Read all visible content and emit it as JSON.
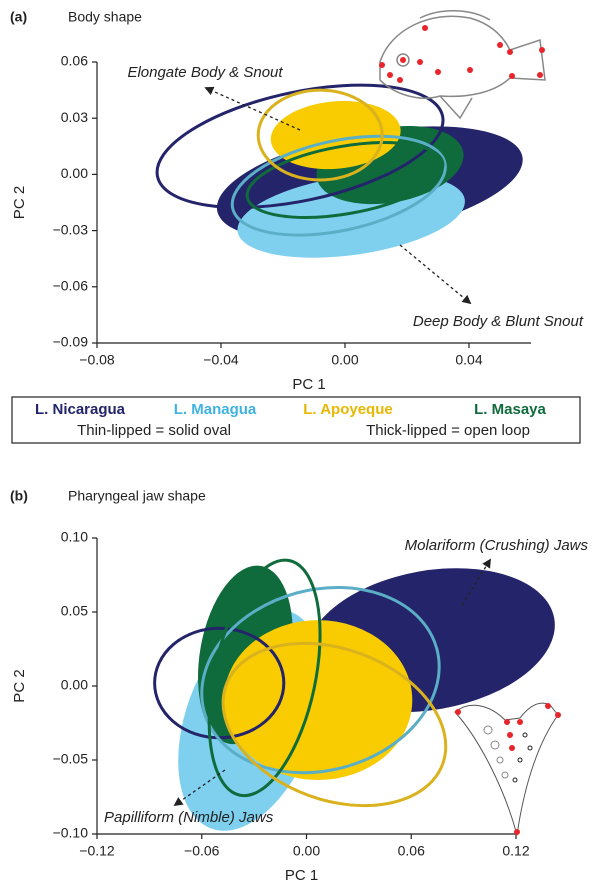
{
  "legend": {
    "entries": [
      {
        "name": "L. Nicaragua",
        "color": "#24246a"
      },
      {
        "name": "L. Managua",
        "color": "#3fb3e0"
      },
      {
        "name": "L. Apoyeque",
        "color": "#e8b800"
      },
      {
        "name": "L. Masaya",
        "color": "#0f6b3c"
      }
    ],
    "notes": [
      "Thin-lipped = solid oval",
      "Thick-lipped = open loop"
    ]
  },
  "chart_data": [
    {
      "type": "ellipse",
      "panel": "(a)",
      "title": "Body shape",
      "x_label": "PC 1",
      "y_label": "PC 2",
      "xlim": [
        -0.08,
        0.06
      ],
      "ylim": [
        -0.09,
        0.06
      ],
      "xticks": [
        {
          "value": -0.08,
          "label": "−0.08"
        },
        {
          "value": -0.04,
          "label": "−0.04"
        },
        {
          "value": 0,
          "label": "0.00"
        },
        0.04
      ],
      "yticks": [
        0.06,
        0.03,
        {
          "value": 0,
          "label": "0.00"
        },
        {
          "value": -0.03,
          "label": "−0.03"
        },
        {
          "value": -0.06,
          "label": "−0.06"
        },
        {
          "value": -0.09,
          "label": "−0.09"
        }
      ],
      "annotations": [
        "Elongate Body & Snout",
        "Deep Body & Blunt Snout"
      ],
      "ellipses": [
        {
          "style": "solid",
          "color": "#24246a",
          "cx": 0.008,
          "cy": -0.005,
          "rx": 0.05,
          "ry": 0.0275,
          "angle": -10
        },
        {
          "style": "solid",
          "color": "#7fd0ef",
          "cx": 0.002,
          "cy": -0.022,
          "rx": 0.037,
          "ry": 0.021,
          "angle": -8
        },
        {
          "style": "solid",
          "color": "#0f6b3c",
          "cx": 0.0145,
          "cy": 0.005,
          "rx": 0.024,
          "ry": 0.02,
          "angle": -10
        },
        {
          "style": "solid",
          "color": "#f8cc00",
          "cx": -0.003,
          "cy": 0.021,
          "rx": 0.021,
          "ry": 0.018,
          "angle": -5
        },
        {
          "style": "open",
          "color": "#24246a",
          "cx": -0.0145,
          "cy": 0.015,
          "rx": 0.047,
          "ry": 0.029,
          "angle": -12
        },
        {
          "style": "open",
          "color": "#5aaec6",
          "cx": -0.002,
          "cy": -0.006,
          "rx": 0.035,
          "ry": 0.024,
          "angle": -12
        },
        {
          "style": "open",
          "color": "#0f6b3c",
          "cx": 0,
          "cy": -0.003,
          "rx": 0.032,
          "ry": 0.018,
          "angle": -10
        },
        {
          "style": "open",
          "color": "#d9b21e",
          "cx": -0.008,
          "cy": 0.021,
          "rx": 0.02,
          "ry": 0.024,
          "angle": 0
        }
      ]
    },
    {
      "type": "ellipse",
      "panel": "(b)",
      "title": "Pharyngeal jaw shape",
      "x_label": "PC 1",
      "y_label": "PC 2",
      "xlim": [
        -0.12,
        0.12
      ],
      "ylim": [
        -0.1,
        0.1
      ],
      "xticks": [
        {
          "value": -0.12,
          "label": "−0.12"
        },
        {
          "value": -0.06,
          "label": "−0.06"
        },
        {
          "value": 0,
          "label": "0.00"
        },
        0.06,
        0.12
      ],
      "yticks": [
        {
          "value": 0.1,
          "label": "0.10"
        },
        0.05,
        {
          "value": 0,
          "label": "0.00"
        },
        {
          "value": -0.05,
          "label": "−0.05"
        },
        {
          "value": -0.1,
          "label": "−0.10"
        }
      ],
      "annotations": [
        "Molariform (Crushing) Jaws",
        "Papilliform (Nimble) Jaws"
      ],
      "ellipses": [
        {
          "style": "solid",
          "color": "#24246a",
          "cx": 0.071,
          "cy": 0.031,
          "rx": 0.072,
          "ry": 0.047,
          "angle": -10
        },
        {
          "style": "solid",
          "color": "#7fd0ef",
          "cx": -0.032,
          "cy": -0.023,
          "rx": 0.037,
          "ry": 0.078,
          "angle": 20
        },
        {
          "style": "solid",
          "color": "#0f6b3c",
          "cx": -0.035,
          "cy": 0.021,
          "rx": 0.026,
          "ry": 0.061,
          "angle": 10
        },
        {
          "style": "solid",
          "color": "#f8cc00",
          "cx": 0.0066,
          "cy": -0.0095,
          "rx": 0.054,
          "ry": 0.054,
          "angle": 0
        },
        {
          "style": "open",
          "color": "#24246a",
          "cx": -0.05,
          "cy": 0.002,
          "rx": 0.037,
          "ry": 0.037,
          "angle": 0
        },
        {
          "style": "open",
          "color": "#5aaec6",
          "cx": 0.008,
          "cy": 0.004,
          "rx": 0.069,
          "ry": 0.061,
          "angle": -15
        },
        {
          "style": "open",
          "color": "#0f6b3c",
          "cx": -0.024,
          "cy": 0.0055,
          "rx": 0.029,
          "ry": 0.081,
          "angle": 12
        },
        {
          "style": "open",
          "color": "#d9b21e",
          "cx": 0.016,
          "cy": -0.026,
          "rx": 0.066,
          "ry": 0.051,
          "angle": 20
        }
      ]
    }
  ]
}
